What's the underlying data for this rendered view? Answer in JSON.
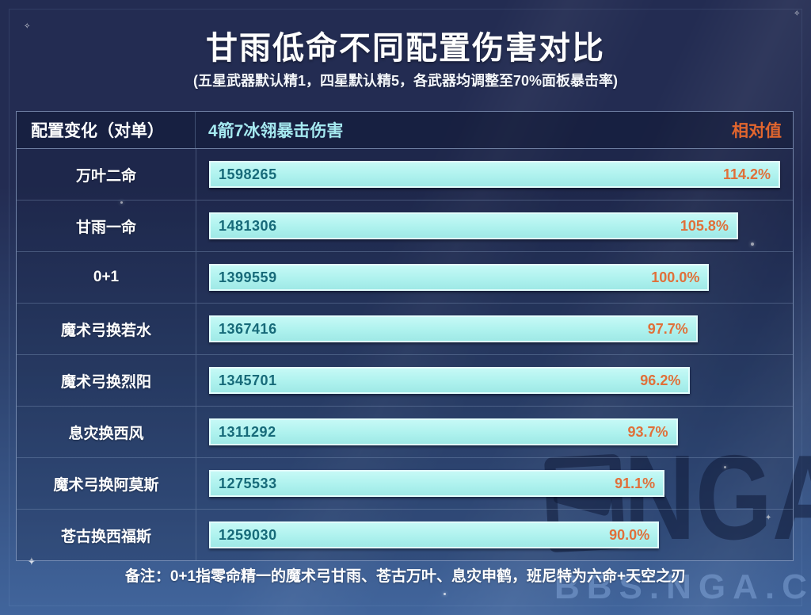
{
  "page": {
    "title": "甘雨低命不同配置伤害对比",
    "subtitle": "(五星武器默认精1，四星默认精5，各武器均调整至70%面板暴击率)",
    "note": "备注：0+1指零命精一的魔术弓甘雨、苍古万叶、息灾申鹤，班尼特为六命+天空之刃"
  },
  "table": {
    "headers": {
      "config": "配置变化（对单）",
      "damage": "4箭7冰翎暴击伤害",
      "relative": "相对值"
    },
    "rows": [
      {
        "label": "万叶二命",
        "value": "1598265",
        "percent": "114.2%",
        "percent_num": 114.2
      },
      {
        "label": "甘雨一命",
        "value": "1481306",
        "percent": "105.8%",
        "percent_num": 105.8
      },
      {
        "label": "0+1",
        "value": "1399559",
        "percent": "100.0%",
        "percent_num": 100.0
      },
      {
        "label": "魔术弓换若水",
        "value": "1367416",
        "percent": "97.7%",
        "percent_num": 97.7
      },
      {
        "label": "魔术弓换烈阳",
        "value": "1345701",
        "percent": "96.2%",
        "percent_num": 96.2
      },
      {
        "label": "息灾换西风",
        "value": "1311292",
        "percent": "93.7%",
        "percent_num": 93.7
      },
      {
        "label": "魔术弓换阿莫斯",
        "value": "1275533",
        "percent": "91.1%",
        "percent_num": 91.1
      },
      {
        "label": "苍古换西福斯",
        "value": "1259030",
        "percent": "90.0%",
        "percent_num": 90.0
      }
    ]
  },
  "watermark": {
    "logo_text": "NGA",
    "site_text": "BBS.NGA.CN"
  },
  "colors": {
    "bg_top": "#232c52",
    "bg_mid": "#2e4470",
    "bg_bottom": "#41659c",
    "line": "#7f95ba66",
    "line_strong": "#9ab0d4aa",
    "bar_fill": "#aef2ee",
    "bar_border": "#e2fdfc",
    "bar_value": "#176a79",
    "percent": "#e0703a",
    "header_damage": "#a5e9f0",
    "header_relative": "#e2662e"
  },
  "chart_data": {
    "type": "bar",
    "orientation": "horizontal",
    "title": "甘雨低命不同配置伤害对比",
    "subtitle": "(五星武器默认精1，四星默认精5，各武器均调整至70%面板暴击率)",
    "categories": [
      "万叶二命",
      "甘雨一命",
      "0+1",
      "魔术弓换若水",
      "魔术弓换烈阳",
      "息灾换西风",
      "魔术弓换阿莫斯",
      "苍古换西福斯"
    ],
    "series": [
      {
        "name": "4箭7冰翎暴击伤害",
        "values": [
          1598265,
          1481306,
          1399559,
          1367416,
          1345701,
          1311292,
          1275533,
          1259030
        ]
      },
      {
        "name": "相对值",
        "unit": "%",
        "values": [
          114.2,
          105.8,
          100.0,
          97.7,
          96.2,
          93.7,
          91.1,
          90.0
        ]
      }
    ],
    "baseline_category": "0+1",
    "percent_axis_max": 114.2,
    "legend_position": "none",
    "grid": false,
    "note": "备注：0+1指零命精一的魔术弓甘雨、苍古万叶、息灾申鹤，班尼特为六命+天空之刃"
  }
}
